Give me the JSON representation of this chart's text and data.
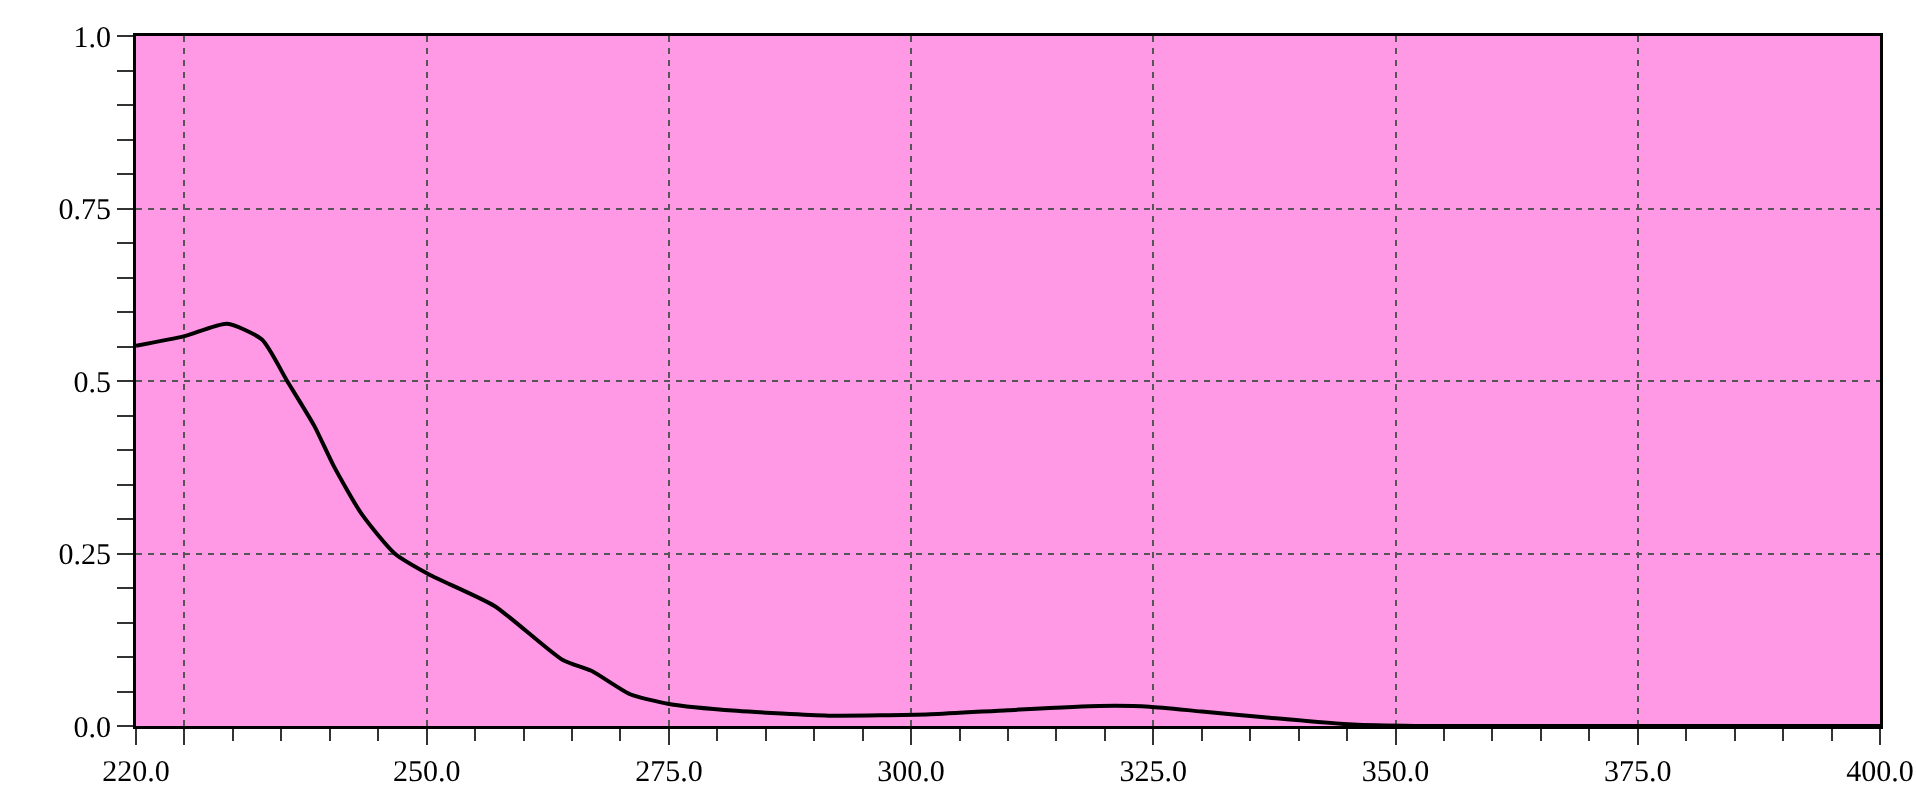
{
  "chart_data": {
    "type": "line",
    "x": [
      220,
      225,
      229.4,
      233,
      235.6,
      238.4,
      240.4,
      243.3,
      246.7,
      250.2,
      257,
      264,
      267,
      271,
      275,
      282,
      291.5,
      302,
      310,
      319.4,
      324.6,
      330,
      337,
      345.6,
      352,
      360,
      380,
      400
    ],
    "series": [
      {
        "color": "#000000",
        "values": [
          0.551,
          0.565,
          0.583,
          0.56,
          0.5,
          0.435,
          0.377,
          0.307,
          0.25,
          0.22,
          0.174,
          0.096,
          0.08,
          0.046,
          0.032,
          0.022,
          0.015,
          0.017,
          0.023,
          0.029,
          0.028,
          0.021,
          0.012,
          0.002,
          0.0,
          0.0,
          0.0,
          0.0
        ]
      }
    ],
    "xlim": [
      220,
      400
    ],
    "xticks": [
      {
        "value": 220,
        "label": "220.0"
      },
      {
        "value": 225,
        "label": null
      },
      {
        "value": 250,
        "label": "250.0"
      },
      {
        "value": 275,
        "label": "275.0"
      },
      {
        "value": 300,
        "label": "300.0"
      },
      {
        "value": 325,
        "label": "325.0"
      },
      {
        "value": 350,
        "label": "350.0"
      },
      {
        "value": 375,
        "label": "375.0"
      },
      {
        "value": 400,
        "label": "400.0"
      }
    ],
    "ylim": [
      0,
      1
    ],
    "yticks": [
      {
        "value": 0,
        "label": "0.0"
      },
      0.25,
      0.5,
      0.75,
      {
        "value": 1,
        "label": "1.0"
      }
    ],
    "grid": true,
    "marker": "none",
    "line_style": "solid"
  }
}
